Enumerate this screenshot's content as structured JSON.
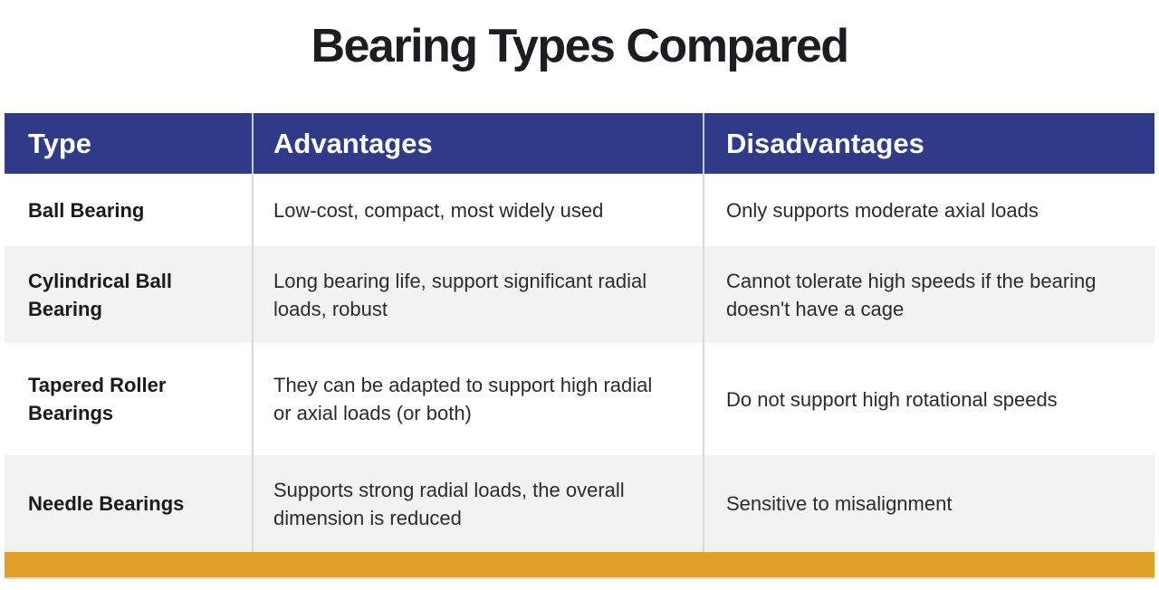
{
  "title": "Bearing Types Compared",
  "table": {
    "headers": {
      "type": "Type",
      "advantages": "Advantages",
      "disadvantages": "Disadvantages"
    },
    "rows": [
      {
        "type": "Ball Bearing",
        "advantages": "Low-cost, compact, most widely used",
        "disadvantages": "Only supports moderate axial loads"
      },
      {
        "type": "Cylindrical Ball Bearing",
        "advantages": "Long bearing life, support significant radial loads, robust",
        "disadvantages": "Cannot tolerate high speeds if the bearing doesn't have a cage"
      },
      {
        "type": "Tapered Roller Bearings",
        "advantages": "They can be adapted to support high radial or axial loads (or both)",
        "disadvantages": "Do not support high rotational speeds"
      },
      {
        "type": "Needle Bearings",
        "advantages": "Supports strong radial loads, the overall dimension is reduced",
        "disadvantages": "Sensitive to misalignment"
      }
    ]
  },
  "colors": {
    "header_bg": "#2F3B88",
    "accent_bar": "#DFA128",
    "row_alt_bg": "#F2F2F2",
    "title_text": "#1d1d21"
  }
}
